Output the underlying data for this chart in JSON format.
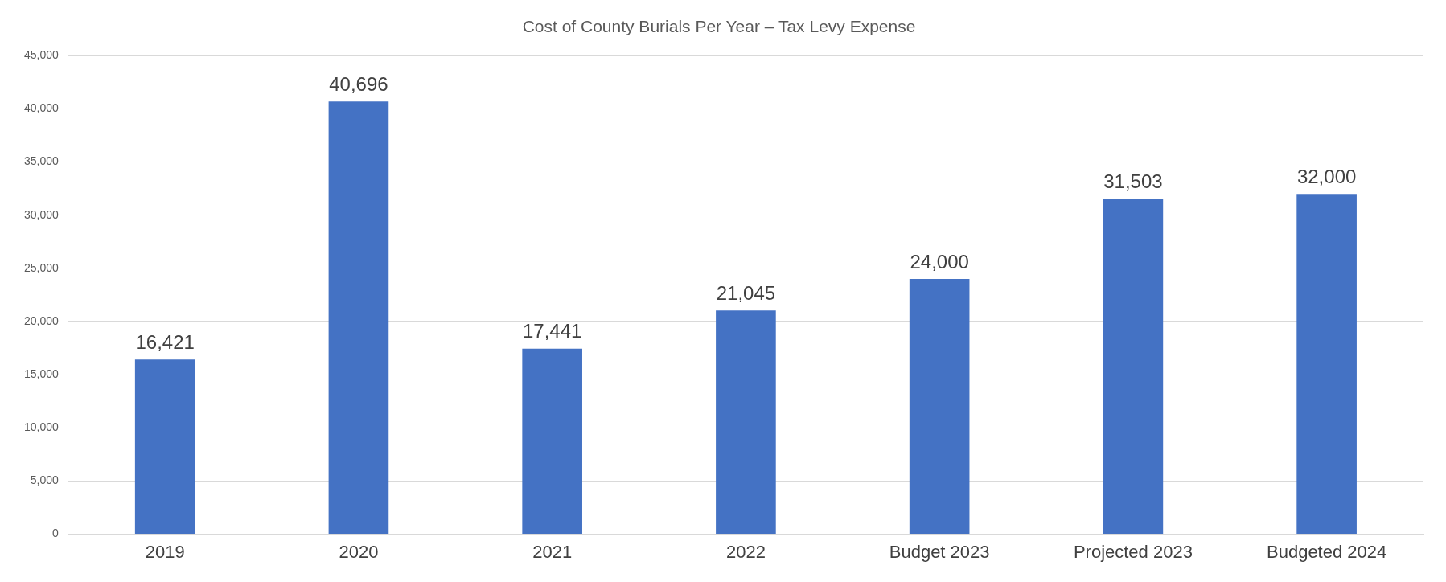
{
  "chart_data": {
    "type": "bar",
    "title": "Cost of County Burials Per Year – Tax Levy Expense",
    "categories": [
      "2019",
      "2020",
      "2021",
      "2022",
      "Budget 2023",
      "Projected 2023",
      "Budgeted 2024"
    ],
    "values": [
      16421,
      40696,
      17441,
      21045,
      24000,
      31503,
      32000
    ],
    "color": "#4472c4",
    "value_labels": [
      "16,421",
      "40,696",
      "17,441",
      "21,045",
      "24,000",
      "31,503",
      "32,000"
    ],
    "ylim": [
      0,
      45000
    ],
    "yticks": [
      0,
      {
        "value": 5000,
        "label": "5,000"
      },
      {
        "value": 10000,
        "label": "10,000"
      },
      {
        "value": 15000,
        "label": "15,000"
      },
      {
        "value": 20000,
        "label": "20,000"
      },
      {
        "value": 25000,
        "label": "25,000"
      },
      {
        "value": 30000,
        "label": "30,000"
      },
      {
        "value": 35000,
        "label": "35,000"
      },
      {
        "value": 40000,
        "label": "40,000"
      },
      {
        "value": 45000,
        "label": "45,000"
      }
    ],
    "grid": "y"
  }
}
